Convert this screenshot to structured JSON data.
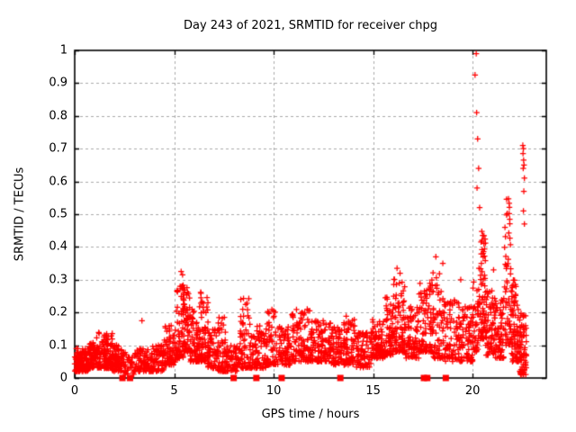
{
  "chart": {
    "title": "Day 243 of 2021, SRMTID for receiver chpg",
    "xlabel": "GPS time / hours",
    "ylabel": "SRMTID / TECUs"
  },
  "chart_data": {
    "type": "scatter",
    "title": "Day 243 of 2021, SRMTID for receiver chpg",
    "xlabel": "GPS time / hours",
    "ylabel": "SRMTID / TECUs",
    "xlim": [
      0,
      23.7
    ],
    "ylim": [
      0,
      1
    ],
    "grid": true,
    "legend": "none",
    "x_ticks": [
      {
        "v": 0,
        "label": "0"
      },
      {
        "v": 5,
        "label": "5"
      },
      {
        "v": 10,
        "label": "10"
      },
      {
        "v": 15,
        "label": "15"
      },
      {
        "v": 20,
        "label": "20"
      }
    ],
    "y_ticks": [
      {
        "v": 0,
        "label": "0"
      },
      {
        "v": 0.1,
        "label": "0.1"
      },
      {
        "v": 0.2,
        "label": "0.2"
      },
      {
        "v": 0.3,
        "label": "0.3"
      },
      {
        "v": 0.4,
        "label": "0.4"
      },
      {
        "v": 0.5,
        "label": "0.5"
      },
      {
        "v": 0.6,
        "label": "0.6"
      },
      {
        "v": 0.7,
        "label": "0.7"
      },
      {
        "v": 0.8,
        "label": "0.8"
      },
      {
        "v": 0.9,
        "label": "0.9"
      },
      {
        "v": 1,
        "label": "1"
      }
    ],
    "colors": {
      "marker": "#ff0000",
      "grid": "#aaaaaa",
      "axis": "#000000",
      "background": "#ffffff"
    },
    "marker": {
      "symbol": "plus",
      "size": 7
    },
    "series": [
      {
        "name": "SRMTID",
        "representation": "density-envelope",
        "seed": 42,
        "segments_format": [
          "x_start_hours",
          "x_end_hours",
          "n_points",
          "y_min_TECUs",
          "y_max_TECUs",
          "bottom_bias_exponent"
        ],
        "segments": [
          [
            0.0,
            0.7,
            120,
            0.02,
            0.09,
            1.5
          ],
          [
            0.7,
            1.1,
            70,
            0.03,
            0.11,
            1.5
          ],
          [
            1.1,
            1.9,
            130,
            0.03,
            0.14,
            1.8
          ],
          [
            1.9,
            2.4,
            70,
            0.02,
            0.1,
            1.5
          ],
          [
            2.4,
            3.1,
            50,
            0.01,
            0.08,
            1.3
          ],
          [
            3.1,
            3.7,
            60,
            0.02,
            0.09,
            1.5
          ],
          [
            3.7,
            4.5,
            80,
            0.02,
            0.1,
            1.5
          ],
          [
            4.5,
            5.1,
            80,
            0.04,
            0.16,
            1.8
          ],
          [
            5.1,
            5.45,
            60,
            0.06,
            0.3,
            1.9
          ],
          [
            5.45,
            5.8,
            70,
            0.08,
            0.28,
            1.8
          ],
          [
            5.8,
            6.3,
            70,
            0.05,
            0.22,
            1.8
          ],
          [
            6.3,
            6.7,
            60,
            0.05,
            0.27,
            2.0
          ],
          [
            6.7,
            7.2,
            60,
            0.03,
            0.15,
            1.5
          ],
          [
            7.2,
            7.6,
            55,
            0.02,
            0.19,
            1.8
          ],
          [
            7.6,
            8.3,
            70,
            0.02,
            0.1,
            1.4
          ],
          [
            8.3,
            8.9,
            70,
            0.03,
            0.25,
            2.2
          ],
          [
            8.9,
            9.6,
            80,
            0.03,
            0.16,
            1.6
          ],
          [
            9.6,
            10.1,
            60,
            0.04,
            0.21,
            2.0
          ],
          [
            10.1,
            10.9,
            80,
            0.04,
            0.16,
            1.6
          ],
          [
            10.9,
            11.9,
            120,
            0.05,
            0.22,
            1.9
          ],
          [
            11.9,
            12.9,
            110,
            0.05,
            0.18,
            1.7
          ],
          [
            12.9,
            13.6,
            80,
            0.04,
            0.17,
            1.7
          ],
          [
            13.6,
            14.1,
            60,
            0.04,
            0.19,
            1.9
          ],
          [
            14.1,
            14.9,
            80,
            0.03,
            0.14,
            1.5
          ],
          [
            14.9,
            15.6,
            90,
            0.06,
            0.18,
            1.6
          ],
          [
            15.6,
            16.0,
            60,
            0.07,
            0.25,
            1.8
          ],
          [
            16.0,
            16.6,
            90,
            0.08,
            0.31,
            1.8
          ],
          [
            16.6,
            17.3,
            80,
            0.06,
            0.22,
            1.6
          ],
          [
            17.3,
            18.0,
            90,
            0.08,
            0.3,
            1.8
          ],
          [
            18.0,
            18.6,
            70,
            0.06,
            0.33,
            1.8
          ],
          [
            18.6,
            19.3,
            70,
            0.05,
            0.24,
            1.6
          ],
          [
            19.3,
            20.0,
            80,
            0.05,
            0.22,
            1.7
          ],
          [
            20.0,
            20.3,
            40,
            0.08,
            0.3,
            1.6
          ],
          [
            20.3,
            20.65,
            70,
            0.12,
            0.47,
            1.6
          ],
          [
            20.65,
            21.1,
            60,
            0.07,
            0.27,
            1.6
          ],
          [
            21.1,
            21.6,
            70,
            0.06,
            0.25,
            1.6
          ],
          [
            21.6,
            21.95,
            60,
            0.1,
            0.56,
            1.7
          ],
          [
            21.95,
            22.35,
            70,
            0.05,
            0.3,
            1.6
          ],
          [
            22.35,
            22.7,
            70,
            0.01,
            0.2,
            1.4
          ]
        ],
        "outlier_points": [
          [
            3.38,
            0.175
          ],
          [
            5.35,
            0.325
          ],
          [
            5.42,
            0.315
          ],
          [
            16.2,
            0.335
          ],
          [
            16.35,
            0.32
          ],
          [
            18.15,
            0.37
          ],
          [
            18.5,
            0.35
          ],
          [
            19.4,
            0.3
          ],
          [
            20.18,
            0.99
          ],
          [
            20.12,
            0.925
          ],
          [
            20.2,
            0.81
          ],
          [
            20.25,
            0.73
          ],
          [
            20.3,
            0.64
          ],
          [
            20.22,
            0.58
          ],
          [
            20.35,
            0.52
          ],
          [
            21.05,
            0.33
          ],
          [
            22.52,
            0.71
          ],
          [
            22.55,
            0.7
          ],
          [
            22.53,
            0.685
          ],
          [
            22.56,
            0.665
          ],
          [
            22.58,
            0.65
          ],
          [
            22.54,
            0.64
          ],
          [
            22.6,
            0.61
          ],
          [
            22.57,
            0.57
          ],
          [
            22.55,
            0.51
          ],
          [
            22.6,
            0.47
          ],
          [
            22.66,
            0.16
          ]
        ]
      },
      {
        "name": "flagged-epochs",
        "representation": "filled-squares-at-zero",
        "x": [
          2.4,
          2.78,
          7.99,
          9.13,
          10.4,
          13.35,
          17.55,
          17.72,
          18.65
        ]
      }
    ]
  }
}
